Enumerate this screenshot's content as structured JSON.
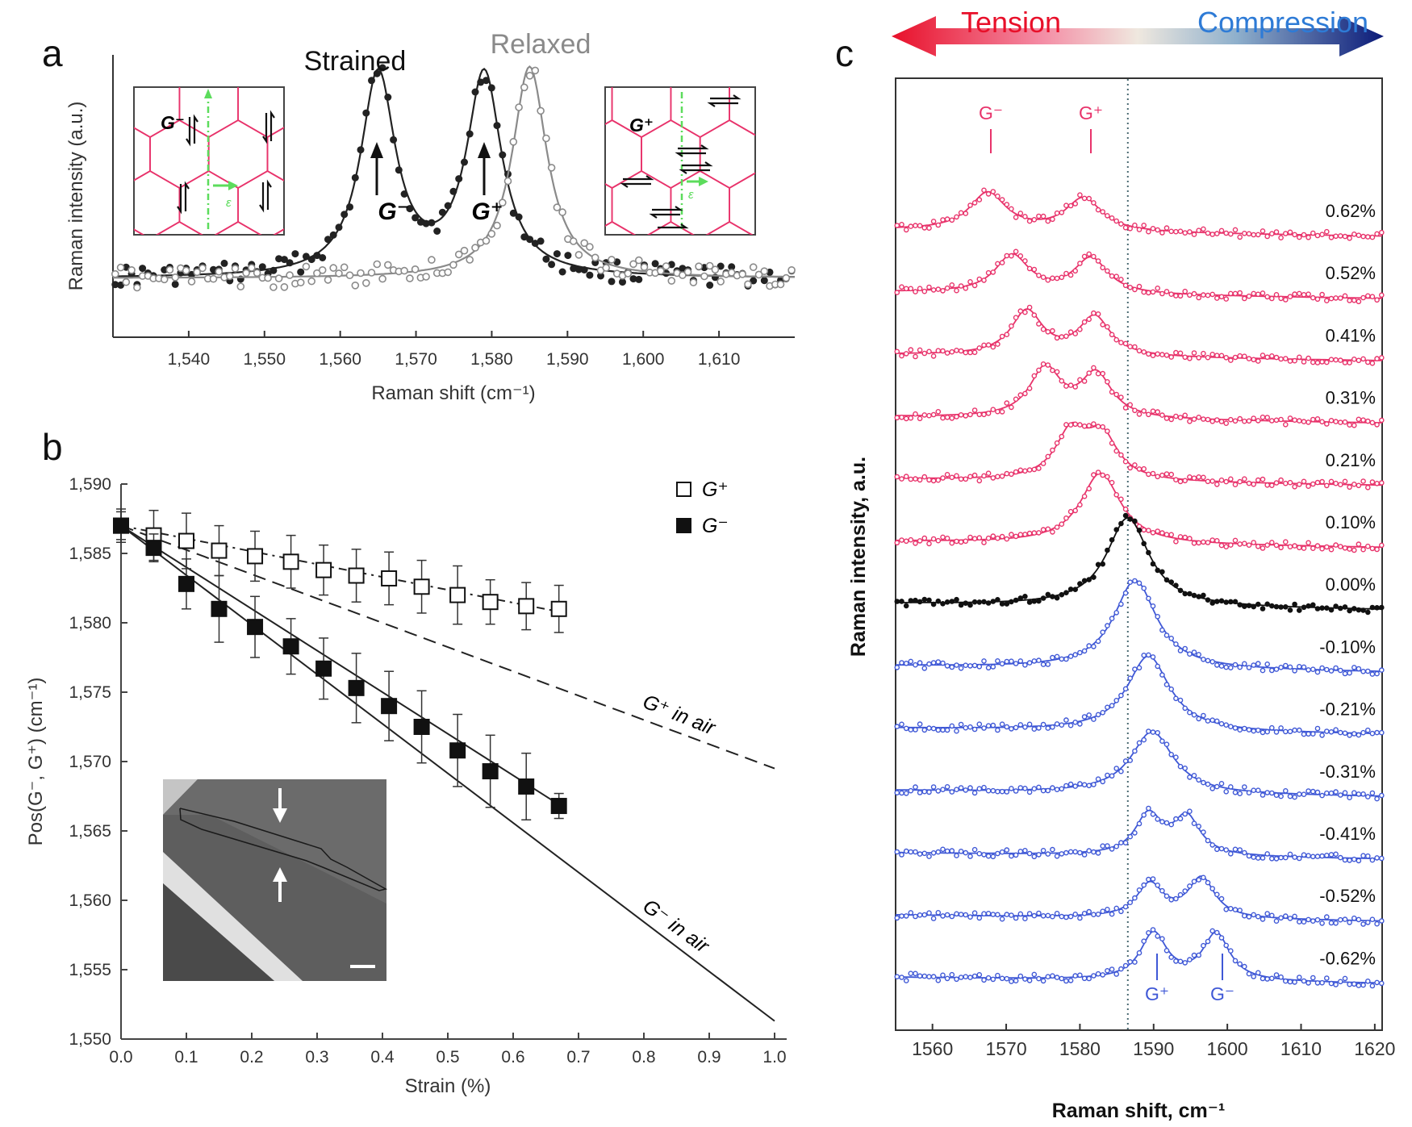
{
  "panels": {
    "a": "a",
    "b": "b",
    "c": "c"
  },
  "chart_data": [
    {
      "panel": "a",
      "type": "scatter",
      "xlabel": "Raman shift (cm⁻¹)",
      "ylabel": "Raman intensity (a.u.)",
      "xlim": [
        1530,
        1620
      ],
      "xticks": [
        1540,
        1550,
        1560,
        1570,
        1580,
        1590,
        1600,
        1610
      ],
      "xtick_labels": [
        "1,540",
        "1,550",
        "1,560",
        "1,570",
        "1,580",
        "1,590",
        "1,600",
        "1,610"
      ],
      "series": [
        {
          "name": "Strained",
          "color": "#222222",
          "marker": "filled-circle",
          "peaks": [
            1565,
            1579
          ],
          "relative_heights": [
            1.0,
            1.0
          ]
        },
        {
          "name": "Relaxed",
          "color": "#8a8a8a",
          "marker": "open-circle",
          "peaks": [
            1585
          ],
          "relative_heights": [
            1.05
          ]
        }
      ],
      "annotations": {
        "strained": "Strained",
        "relaxed": "Relaxed",
        "g_minus": "G⁻",
        "g_plus": "G⁺",
        "inset_left": "G⁻",
        "inset_right": "G⁺",
        "strain_symbol": "ε"
      }
    },
    {
      "panel": "b",
      "type": "scatter",
      "xlabel": "Strain (%)",
      "ylabel": "Pos(G⁻, G⁺) (cm⁻¹)",
      "xlim": [
        0,
        1.0
      ],
      "ylim": [
        1550,
        1590
      ],
      "xticks": [
        0.0,
        0.1,
        0.2,
        0.3,
        0.4,
        0.5,
        0.6,
        0.7,
        0.8,
        0.9,
        1.0
      ],
      "xtick_labels": [
        "0.0",
        "0.1",
        "0.2",
        "0.3",
        "0.4",
        "0.5",
        "0.6",
        "0.7",
        "0.8",
        "0.9",
        "1.0"
      ],
      "yticks": [
        1550,
        1555,
        1560,
        1565,
        1570,
        1575,
        1580,
        1585,
        1590
      ],
      "ytick_labels": [
        "1,550",
        "1,555",
        "1,560",
        "1,565",
        "1,570",
        "1,575",
        "1,580",
        "1,585",
        "1,590"
      ],
      "series": [
        {
          "name": "G⁺",
          "marker": "open-square",
          "x": [
            0.0,
            0.05,
            0.1,
            0.15,
            0.205,
            0.26,
            0.31,
            0.36,
            0.41,
            0.46,
            0.515,
            0.565,
            0.62,
            0.67
          ],
          "y": [
            1587.0,
            1586.3,
            1585.9,
            1585.2,
            1584.8,
            1584.4,
            1583.8,
            1583.4,
            1583.2,
            1582.6,
            1582.0,
            1581.5,
            1581.2,
            1581.0
          ],
          "err": [
            1.2,
            1.8,
            2.0,
            1.8,
            1.8,
            1.9,
            1.8,
            1.9,
            1.9,
            1.9,
            2.1,
            1.6,
            1.7,
            1.7
          ]
        },
        {
          "name": "G⁻",
          "marker": "filled-square",
          "x": [
            0.0,
            0.05,
            0.1,
            0.15,
            0.205,
            0.26,
            0.31,
            0.36,
            0.41,
            0.46,
            0.515,
            0.565,
            0.62,
            0.67
          ],
          "y": [
            1587.0,
            1585.4,
            1582.8,
            1581.0,
            1579.7,
            1578.3,
            1576.7,
            1575.3,
            1574.0,
            1572.5,
            1570.8,
            1569.3,
            1568.2,
            1566.8
          ],
          "err": [
            1.0,
            1.0,
            1.8,
            2.4,
            2.2,
            2.0,
            2.2,
            2.5,
            2.5,
            2.6,
            2.6,
            2.6,
            2.4,
            0.9
          ]
        }
      ],
      "fit_lines": [
        {
          "label": "G⁺ fit",
          "x": [
            0.0,
            0.67
          ],
          "y": [
            1587.0,
            1580.8
          ],
          "style": "dash-dot"
        },
        {
          "label": "G⁻ fit",
          "x": [
            0.0,
            0.67
          ],
          "y": [
            1587.0,
            1566.9
          ],
          "style": "solid"
        },
        {
          "label": "G⁺ in air",
          "x": [
            0.0,
            1.0
          ],
          "y": [
            1587.0,
            1569.5
          ],
          "style": "dashed"
        },
        {
          "label": "G⁻ in air",
          "x": [
            0.0,
            1.0
          ],
          "y": [
            1587.0,
            1551.3
          ],
          "style": "solid"
        }
      ],
      "legend": {
        "position": "top-right",
        "items": [
          "G⁺",
          "G⁻"
        ]
      },
      "annotations": {
        "g_plus_air": "G⁺ in air",
        "g_minus_air": "G⁻ in air"
      }
    },
    {
      "panel": "c",
      "type": "line",
      "xlabel": "Raman shift, cm⁻¹",
      "ylabel": "Raman intensity, a.u.",
      "xlim": [
        1555,
        1621
      ],
      "xticks": [
        1560,
        1570,
        1580,
        1590,
        1600,
        1610,
        1620
      ],
      "xtick_labels": [
        "1560",
        "1570",
        "1580",
        "1590",
        "1600",
        "1610",
        "1620"
      ],
      "reference_line_x": 1586.5,
      "arrow": {
        "left": "Tension",
        "right": "Compression"
      },
      "peak_labels_top": [
        "G⁻",
        "G⁺"
      ],
      "peak_labels_bottom": [
        "G⁺",
        "G⁻"
      ],
      "colors": {
        "tension": "#e8336b",
        "relaxed": "#111111",
        "compression": "#3f58d6"
      },
      "spectra": [
        {
          "strain": "0.62%",
          "group": "tension",
          "peaks": [
            1567.5,
            1580.5
          ],
          "heights": [
            0.85,
            0.75
          ],
          "width": 3.0
        },
        {
          "strain": "0.52%",
          "group": "tension",
          "peaks": [
            1570.8,
            1581.5
          ],
          "heights": [
            0.85,
            0.8
          ],
          "width": 2.8
        },
        {
          "strain": "0.41%",
          "group": "tension",
          "peaks": [
            1572.8,
            1582.0
          ],
          "heights": [
            1.0,
            0.88
          ],
          "width": 2.6
        },
        {
          "strain": "0.31%",
          "group": "tension",
          "peaks": [
            1575.3,
            1582.2
          ],
          "heights": [
            1.1,
            0.98
          ],
          "width": 2.6
        },
        {
          "strain": "0.21%",
          "group": "tension",
          "peaks": [
            1578.8,
            1583.0
          ],
          "heights": [
            1.05,
            0.95
          ],
          "width": 2.6
        },
        {
          "strain": "0.10%",
          "group": "tension",
          "peaks": [
            1582.8
          ],
          "heights": [
            1.6
          ],
          "width": 3.3
        },
        {
          "strain": "0.00%",
          "group": "relaxed",
          "peaks": [
            1586.5
          ],
          "heights": [
            2.0
          ],
          "width": 3.5
        },
        {
          "strain": "-0.10%",
          "group": "compression",
          "peaks": [
            1587.5
          ],
          "heights": [
            2.0
          ],
          "width": 3.5
        },
        {
          "strain": "-0.21%",
          "group": "compression",
          "peaks": [
            1589.3
          ],
          "heights": [
            1.7
          ],
          "width": 3.5
        },
        {
          "strain": "-0.31%",
          "group": "compression",
          "peaks": [
            1589.8
          ],
          "heights": [
            1.4
          ],
          "width": 3.5
        },
        {
          "strain": "-0.41%",
          "group": "compression",
          "peaks": [
            1589.3,
            1594.5
          ],
          "heights": [
            0.9,
            0.85
          ],
          "width": 2.2
        },
        {
          "strain": "-0.52%",
          "group": "compression",
          "peaks": [
            1589.5,
            1596.5
          ],
          "heights": [
            0.75,
            0.9
          ],
          "width": 2.2
        },
        {
          "strain": "-0.62%",
          "group": "compression",
          "peaks": [
            1590.0,
            1598.5
          ],
          "heights": [
            1.05,
            1.05
          ],
          "width": 2.2
        }
      ]
    }
  ]
}
